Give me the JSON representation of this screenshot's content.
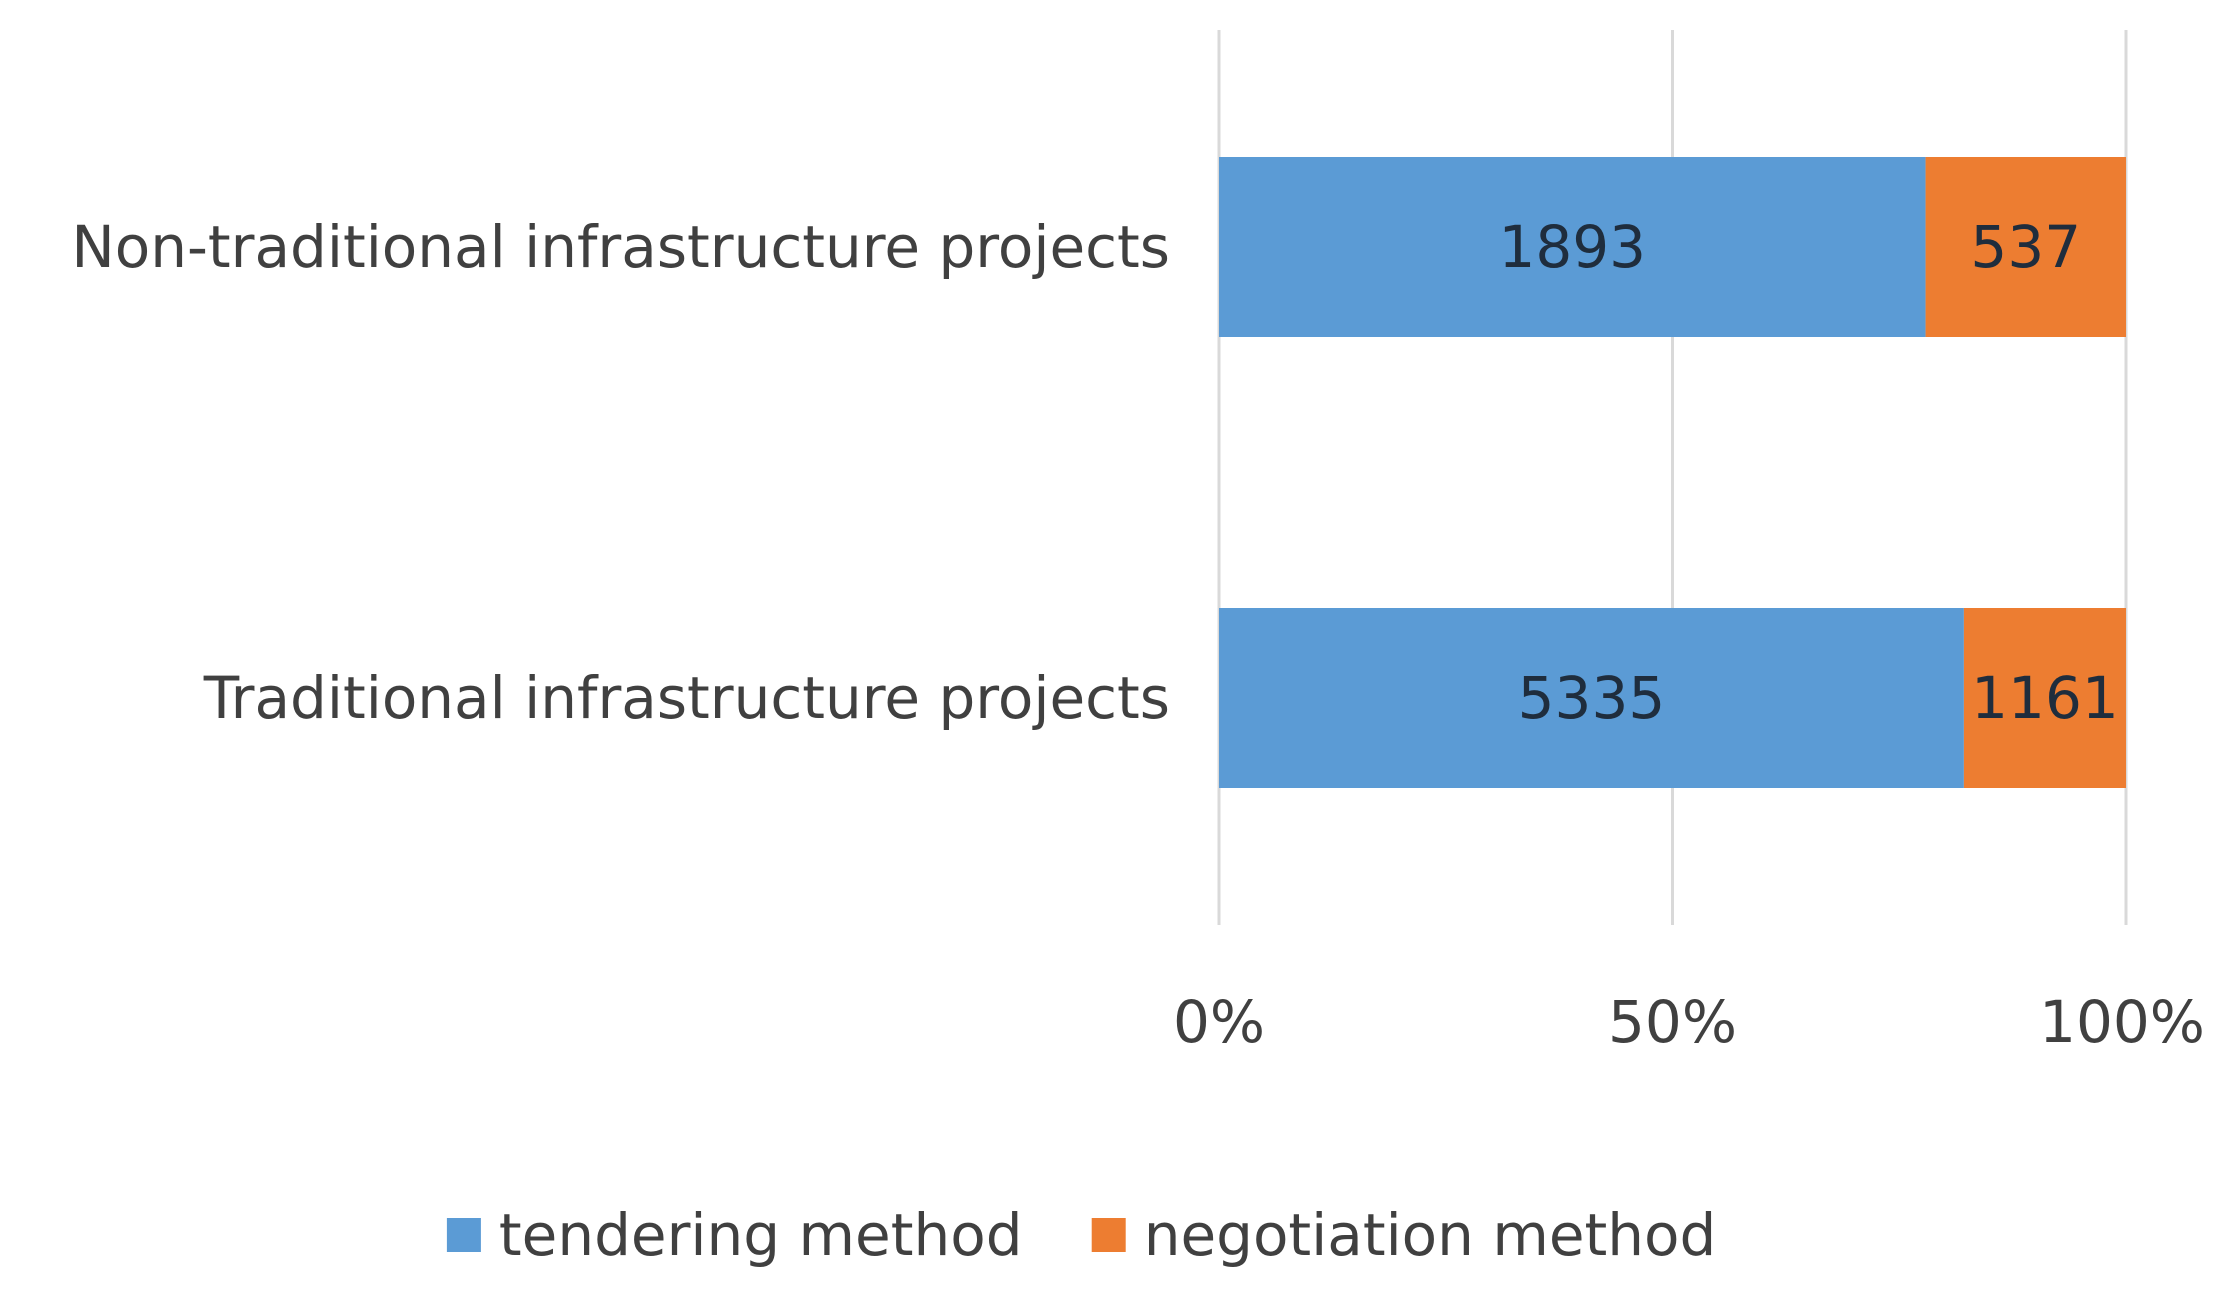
{
  "chart_data": {
    "type": "bar",
    "orientation": "horizontal",
    "stacked": "percent",
    "categories": [
      "Non-traditional infrastructure projects",
      "Traditional infrastructure projects"
    ],
    "series": [
      {
        "name": "tendering method",
        "color": "#5B9BD5",
        "values": [
          1893,
          5335
        ]
      },
      {
        "name": "negotiation method",
        "color": "#ED7D31",
        "values": [
          537,
          1161
        ]
      }
    ],
    "x_ticks": [
      "0%",
      "50%",
      "100%"
    ],
    "xlim": [
      0,
      100
    ],
    "grid": true,
    "legend": "bottom",
    "title": "",
    "xlabel": "",
    "ylabel": ""
  }
}
